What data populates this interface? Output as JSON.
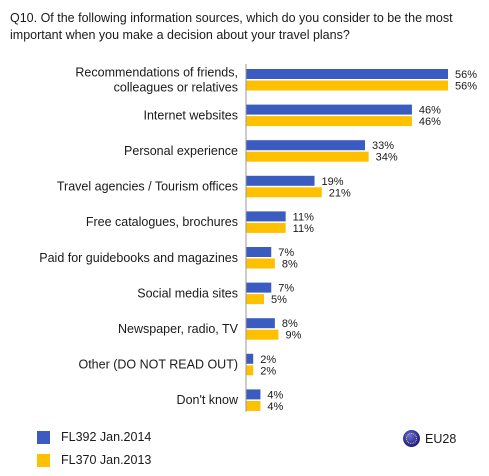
{
  "question": "Q10. Of the following information sources, which do you consider to be the most important when you make a decision about your travel plans?",
  "colors": {
    "series1": "#3a5bbf",
    "series2": "#ffc000"
  },
  "chart_data": {
    "type": "bar",
    "orientation": "horizontal",
    "title": "Q10. Of the following information sources, which do you consider to be the most important when you make a decision about your travel plans?",
    "categories": [
      [
        "Recommendations of friends,",
        "colleagues or relatives"
      ],
      [
        "Internet websites"
      ],
      [
        "Personal experience"
      ],
      [
        "Travel agencies / Tourism offices"
      ],
      [
        "Free catalogues, brochures"
      ],
      [
        "Paid for guidebooks and magazines"
      ],
      [
        "Social media sites"
      ],
      [
        "Newspaper, radio, TV"
      ],
      [
        "Other (DO NOT READ OUT)"
      ],
      [
        "Don't know"
      ]
    ],
    "series": [
      {
        "name": "FL392 Jan.2014",
        "color": "#3a5bbf",
        "values": [
          56,
          46,
          33,
          19,
          11,
          7,
          7,
          8,
          2,
          4
        ],
        "labels": [
          "56%",
          "46%",
          "33%",
          "19%",
          "11%",
          "7%",
          "7%",
          "8%",
          "2%",
          "4%"
        ]
      },
      {
        "name": "FL370 Jan.2013",
        "color": "#ffc000",
        "values": [
          56,
          46,
          34,
          21,
          11,
          8,
          5,
          9,
          2,
          4
        ],
        "labels": [
          "56%",
          "46%",
          "34%",
          "21%",
          "11%",
          "8%",
          "5%",
          "9%",
          "2%",
          "4%"
        ]
      }
    ],
    "xlim": [
      0,
      56
    ],
    "grid": false,
    "legend_position": "bottom",
    "region_label": "EU28"
  },
  "legend": {
    "series1": "FL392 Jan.2014",
    "series2": "FL370 Jan.2013",
    "region": "EU28"
  }
}
